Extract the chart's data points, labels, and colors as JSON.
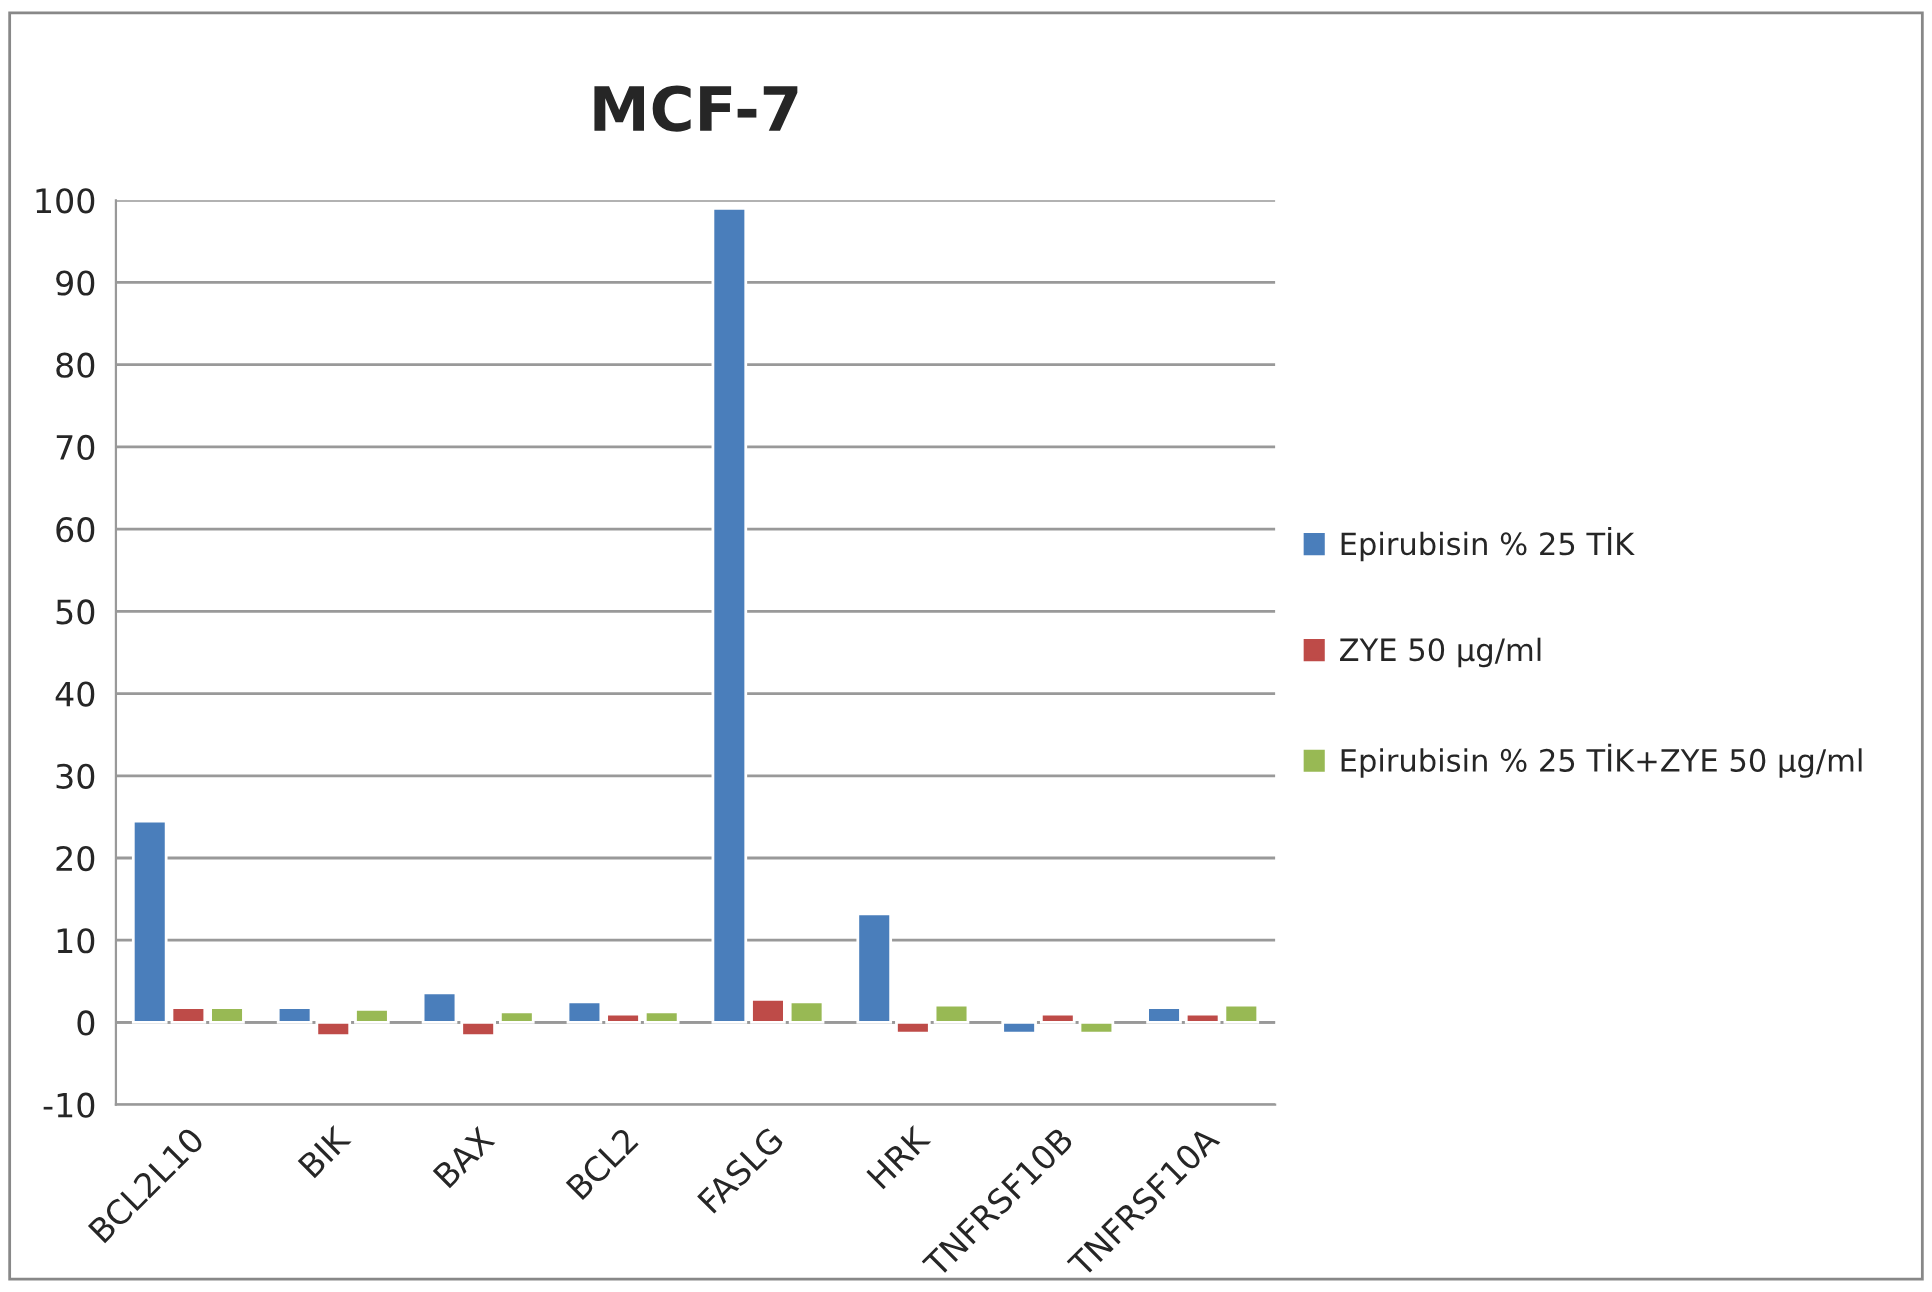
{
  "chart_data": {
    "type": "bar",
    "title": "MCF-7",
    "categories": [
      "BCL2L10",
      "BIK",
      "BAX",
      "BCL2",
      "FASLG",
      "HRK",
      "TNFRSF10B",
      "TNFRSF10A"
    ],
    "series": [
      {
        "name": "Epirubisin % 25 TİK",
        "color": "#4a7ebb",
        "values": [
          24.5,
          1.8,
          3.6,
          2.5,
          99,
          13.2,
          -1.3,
          1.8
        ]
      },
      {
        "name": "ZYE 50 µg/ml",
        "color": "#be4b48",
        "values": [
          1.8,
          -1.6,
          -1.6,
          1.0,
          2.8,
          -1.3,
          1.0,
          1.0
        ]
      },
      {
        "name": "Epirubisin % 25 TİK+ZYE 50 µg/ml",
        "color": "#98b954",
        "values": [
          1.8,
          1.6,
          1.3,
          1.3,
          2.5,
          2.1,
          -1.3,
          2.1
        ]
      }
    ],
    "ylim": [
      -10,
      100
    ],
    "yticks": [
      -10,
      0,
      10,
      20,
      30,
      40,
      50,
      60,
      70,
      80,
      90,
      100
    ],
    "grid": "y",
    "legend": "right"
  }
}
